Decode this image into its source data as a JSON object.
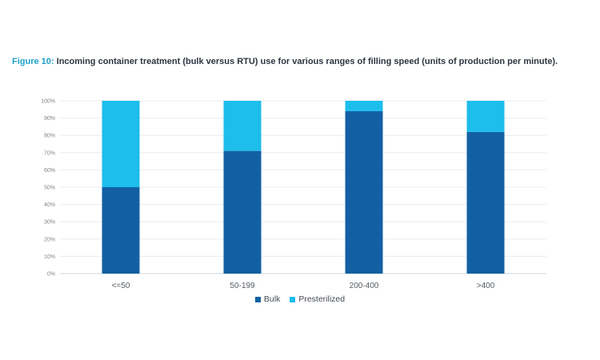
{
  "caption": {
    "label": "Figure 10:",
    "text": "Incoming container treatment (bulk versus RTU) use for various ranges of filling speed (units of production per minute)."
  },
  "colors": {
    "bulk": "#1260a3",
    "presterilized": "#1dbdec",
    "grid": "#e9ecef",
    "axis": "#d2d6da"
  },
  "chart_data": {
    "type": "bar",
    "stacked": true,
    "categories": [
      "<=50",
      "50-199",
      "200-400",
      ">400"
    ],
    "series": [
      {
        "name": "Bulk",
        "values": [
          50,
          71,
          94,
          82
        ]
      },
      {
        "name": "Presterilized",
        "values": [
          50,
          29,
          6,
          18
        ]
      }
    ],
    "ylim": [
      0,
      100
    ],
    "yticks": [
      "0%",
      "10%",
      "20%",
      "30%",
      "40%",
      "50%",
      "60%",
      "70%",
      "80%",
      "90%",
      "100%"
    ],
    "grid": true,
    "legend_position": "bottom"
  }
}
